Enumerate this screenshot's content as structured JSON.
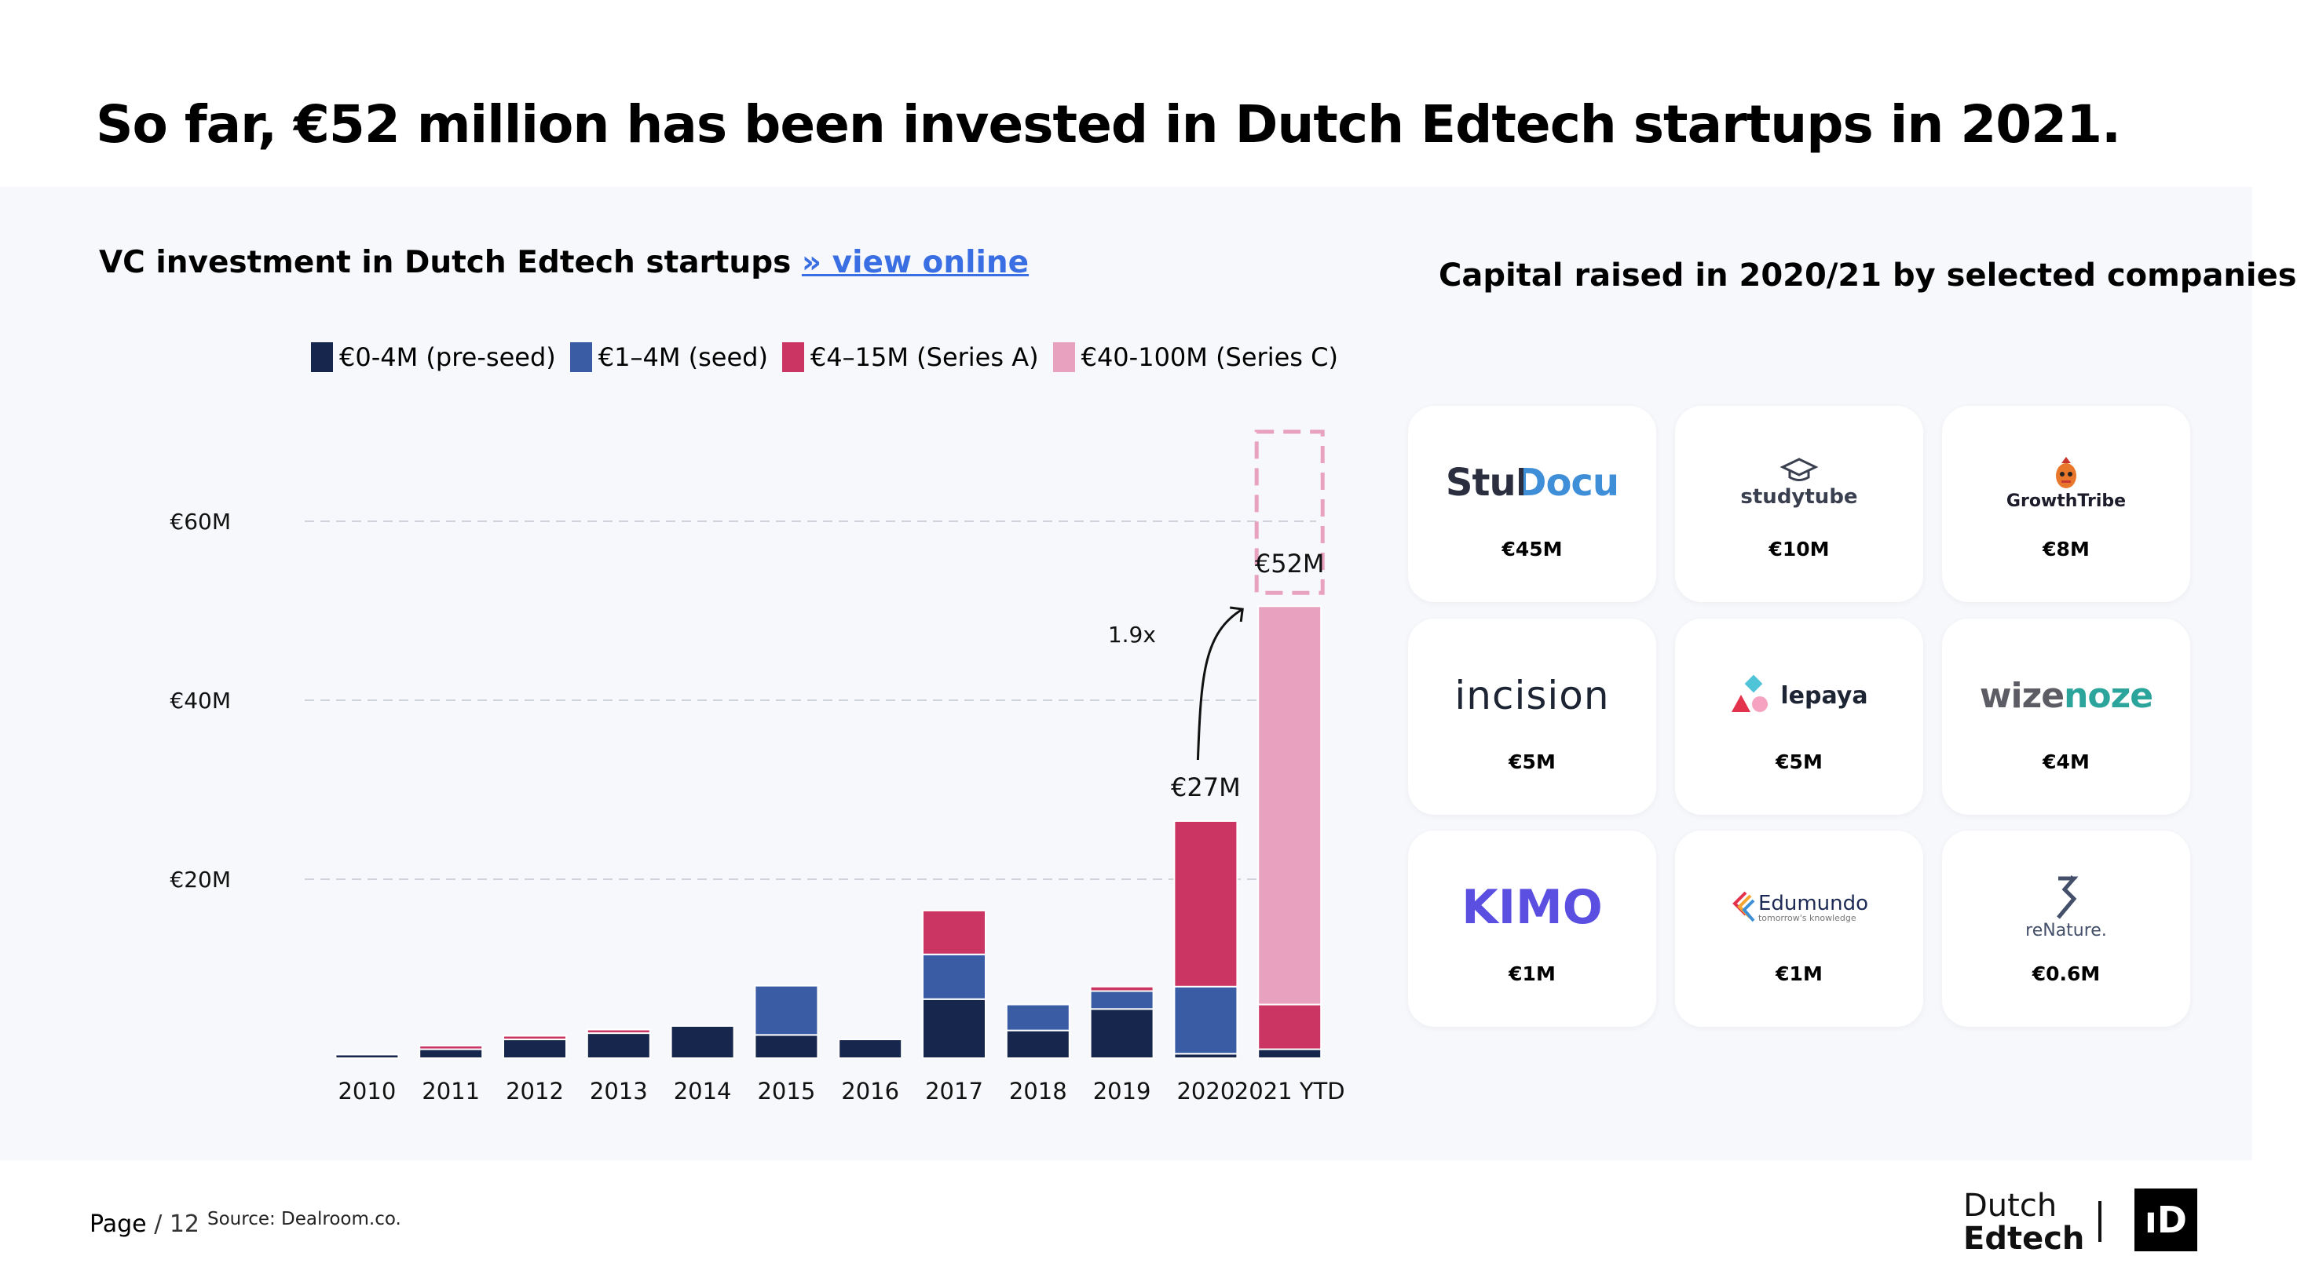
{
  "headline": "So far, €52 million has been invested in Dutch Edtech startups in 2021.",
  "chart_header": {
    "title": "VC investment in Dutch Edtech startups",
    "link_text": "» view online"
  },
  "colors": {
    "pre_seed": "#17264d",
    "seed": "#3a5ca5",
    "series_a": "#cb3564",
    "series_c": "#e8a1bf",
    "grid": "#cfd3db",
    "projection": "#e8a1bf"
  },
  "chart_data": {
    "type": "bar",
    "stacked": true,
    "categories": [
      "2010",
      "2011",
      "2012",
      "2013",
      "2014",
      "2015",
      "2016",
      "2017",
      "2018",
      "2019",
      "2020",
      "2021 YTD"
    ],
    "series": [
      {
        "name": "€0-4M (pre-seed)",
        "color_key": "pre_seed",
        "values": [
          0.4,
          1.0,
          2.1,
          2.8,
          3.6,
          2.6,
          2.1,
          6.6,
          3.1,
          5.5,
          0.5,
          1.0
        ]
      },
      {
        "name": "€1–4M  (seed)",
        "color_key": "seed",
        "values": [
          0,
          0,
          0,
          0,
          0,
          5.5,
          0,
          5.0,
          2.9,
          2.0,
          7.5,
          0
        ]
      },
      {
        "name": "€4–15M  (Series A)",
        "color_key": "series_a",
        "values": [
          0,
          0.4,
          0.4,
          0.4,
          0,
          0,
          0,
          4.9,
          0,
          0.5,
          18.5,
          5.0
        ]
      },
      {
        "name": "€40-100M (Series C)",
        "color_key": "series_c",
        "values": [
          0,
          0,
          0,
          0,
          0,
          0,
          0,
          0,
          0,
          0,
          0,
          44.5
        ]
      }
    ],
    "ylim": [
      0,
      70
    ],
    "yticks": [
      {
        "value": 20,
        "label": "€20M"
      },
      {
        "value": 40,
        "label": "€40M"
      },
      {
        "value": 60,
        "label": "€60M"
      }
    ],
    "grid": true,
    "legend_position": "top",
    "annotations": [
      {
        "category": "2020",
        "label": "€27M",
        "value": 27
      },
      {
        "category": "2021 YTD",
        "label": "€52M",
        "value": 52
      }
    ],
    "growth_label": "1.9x",
    "projection": {
      "category": "2021 YTD",
      "from": 52,
      "to": 70
    }
  },
  "right_panel": {
    "title": "Capital raised in 2020/21 by selected companies",
    "companies": [
      {
        "name": "StuDocu",
        "amount": "€45M",
        "icon": "studocu-logo"
      },
      {
        "name": "studytube",
        "amount": "€10M",
        "icon": "graduation-cap-icon"
      },
      {
        "name": "GrowthTribe",
        "amount": "€8M",
        "icon": "tribe-mask-icon"
      },
      {
        "name": "incision",
        "amount": "€5M",
        "icon": "incision-logo"
      },
      {
        "name": "lepaya",
        "amount": "€5M",
        "icon": "lepaya-shapes-icon"
      },
      {
        "name": "wizenoze",
        "amount": "€4M",
        "icon": "wizenoze-logo"
      },
      {
        "name": "KIMO",
        "amount": "€1M",
        "icon": "kimo-logo"
      },
      {
        "name": "Edumundo",
        "tagline": "tomorrow's knowledge",
        "amount": "€1M",
        "icon": "edumundo-book-icon"
      },
      {
        "name": "reNature.",
        "amount": "€0.6M",
        "icon": "renature-arrows-icon"
      }
    ]
  },
  "footer": {
    "page_label": "Page",
    "page_number": "/ 12",
    "source": "Source: Dealroom.co.",
    "brand_line1": "Dutch",
    "brand_line2": "Edtech",
    "brand_mark": "ıD"
  }
}
